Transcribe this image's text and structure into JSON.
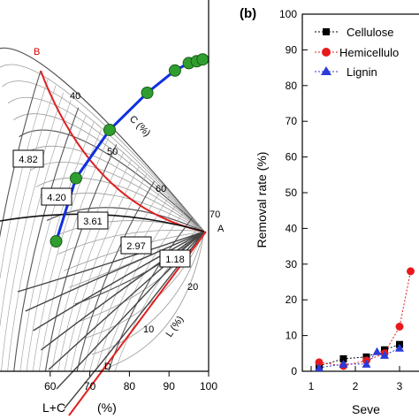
{
  "chart_data": [
    {
      "type": "scatter",
      "panel": "a",
      "x_axis": {
        "title": "L+C",
        "unit": "(%)",
        "ticks": [
          "60",
          "70",
          "80",
          "90",
          "100"
        ],
        "range": [
          50,
          100
        ]
      },
      "grid_labels": {
        "vertices": [
          "A",
          "B",
          "D"
        ],
        "c_axis": {
          "title": "C",
          "unit": "(%)",
          "ticks": [
            "40",
            "50",
            "60",
            "70"
          ]
        },
        "l_axis": {
          "title": "L",
          "unit": "(%)",
          "ticks": [
            "10",
            "20"
          ]
        }
      },
      "path_points": [
        {
          "x": 61.5,
          "y": 35
        },
        {
          "x": 66.5,
          "y": 52
        },
        {
          "x": 75.0,
          "y": 65
        },
        {
          "x": 84.5,
          "y": 75
        },
        {
          "x": 91.5,
          "y": 81
        },
        {
          "x": 95.0,
          "y": 83
        },
        {
          "x": 97.0,
          "y": 83.5
        },
        {
          "x": 98.5,
          "y": 84
        }
      ],
      "annotations": [
        "4.82",
        "4.20",
        "3.61",
        "2.97",
        "1.18"
      ]
    },
    {
      "type": "scatter",
      "panel": "b",
      "panel_label": "(b)",
      "ylabel": "Removal rate (%)",
      "xlabel": "Seve",
      "ylim": [
        0,
        100
      ],
      "xlim": [
        0.8,
        3.6
      ],
      "x_ticks": [
        "1",
        "2",
        "3"
      ],
      "y_ticks": [
        "0",
        "10",
        "20",
        "30",
        "40",
        "50",
        "60",
        "70",
        "80",
        "90",
        "100"
      ],
      "series": [
        {
          "name": "Cellulose",
          "color": "#000000",
          "marker": "square",
          "x": [
            1.18,
            1.73,
            2.25,
            2.66,
            3.0
          ],
          "y": [
            1.5,
            3.5,
            4.0,
            6.0,
            7.5
          ]
        },
        {
          "name": "Hemicellulo",
          "color": "#e8191c",
          "marker": "circle",
          "x": [
            1.18,
            1.73,
            2.25,
            2.66,
            3.0,
            3.25
          ],
          "y": [
            2.5,
            1.5,
            3.0,
            5.0,
            12.5,
            28.0
          ]
        },
        {
          "name": "Lignin",
          "color": "#2a3bd8",
          "marker": "triangle",
          "x": [
            1.18,
            1.73,
            2.25,
            2.49,
            2.66,
            3.0
          ],
          "y": [
            1.0,
            2.0,
            2.0,
            5.5,
            4.5,
            6.5
          ]
        }
      ]
    }
  ]
}
